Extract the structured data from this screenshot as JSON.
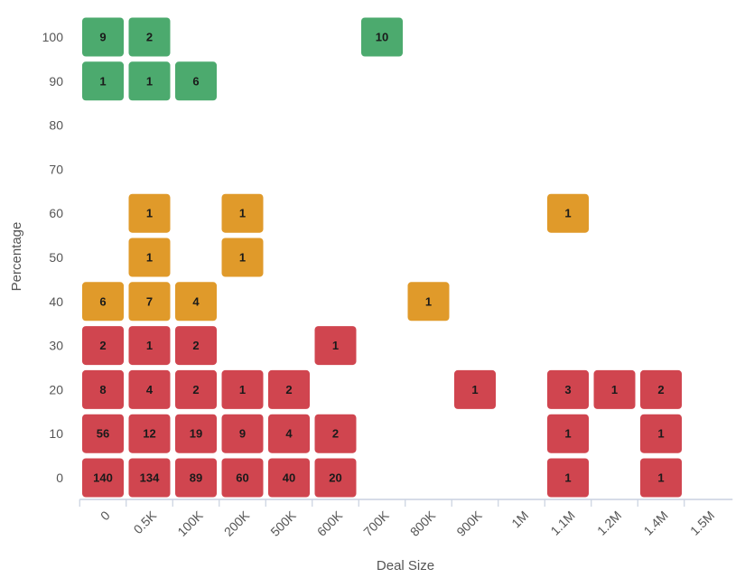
{
  "chart_data": {
    "type": "heatmap",
    "title": "",
    "xlabel": "Deal Size",
    "ylabel": "Percentage",
    "x_categories": [
      "0",
      "0.5K",
      "100K",
      "200K",
      "500K",
      "600K",
      "700K",
      "800K",
      "900K",
      "1M",
      "1.1M",
      "1.2M",
      "1.4M",
      "1.5M"
    ],
    "y_categories": [
      "0",
      "10",
      "20",
      "30",
      "40",
      "50",
      "60",
      "70",
      "80",
      "90",
      "100"
    ],
    "color_bands": [
      {
        "min_percentage": 0,
        "max_percentage": 30,
        "color": "#d0454f"
      },
      {
        "min_percentage": 40,
        "max_percentage": 60,
        "color": "#e09a2a"
      },
      {
        "min_percentage": 90,
        "max_percentage": 100,
        "color": "#4caa6e"
      }
    ],
    "cells": [
      {
        "x": "0",
        "y": "0",
        "value": 140
      },
      {
        "x": "0.5K",
        "y": "0",
        "value": 134
      },
      {
        "x": "100K",
        "y": "0",
        "value": 89
      },
      {
        "x": "200K",
        "y": "0",
        "value": 60
      },
      {
        "x": "500K",
        "y": "0",
        "value": 40
      },
      {
        "x": "600K",
        "y": "0",
        "value": 20
      },
      {
        "x": "1.1M",
        "y": "0",
        "value": 1
      },
      {
        "x": "1.4M",
        "y": "0",
        "value": 1
      },
      {
        "x": "0",
        "y": "10",
        "value": 56
      },
      {
        "x": "0.5K",
        "y": "10",
        "value": 12
      },
      {
        "x": "100K",
        "y": "10",
        "value": 19
      },
      {
        "x": "200K",
        "y": "10",
        "value": 9
      },
      {
        "x": "500K",
        "y": "10",
        "value": 4
      },
      {
        "x": "600K",
        "y": "10",
        "value": 2
      },
      {
        "x": "1.1M",
        "y": "10",
        "value": 1
      },
      {
        "x": "1.4M",
        "y": "10",
        "value": 1
      },
      {
        "x": "0",
        "y": "20",
        "value": 8
      },
      {
        "x": "0.5K",
        "y": "20",
        "value": 4
      },
      {
        "x": "100K",
        "y": "20",
        "value": 2
      },
      {
        "x": "200K",
        "y": "20",
        "value": 1
      },
      {
        "x": "500K",
        "y": "20",
        "value": 2
      },
      {
        "x": "900K",
        "y": "20",
        "value": 1
      },
      {
        "x": "1.1M",
        "y": "20",
        "value": 3
      },
      {
        "x": "1.2M",
        "y": "20",
        "value": 1
      },
      {
        "x": "1.4M",
        "y": "20",
        "value": 2
      },
      {
        "x": "0",
        "y": "30",
        "value": 2
      },
      {
        "x": "0.5K",
        "y": "30",
        "value": 1
      },
      {
        "x": "100K",
        "y": "30",
        "value": 2
      },
      {
        "x": "600K",
        "y": "30",
        "value": 1
      },
      {
        "x": "0",
        "y": "40",
        "value": 6
      },
      {
        "x": "0.5K",
        "y": "40",
        "value": 7
      },
      {
        "x": "100K",
        "y": "40",
        "value": 4
      },
      {
        "x": "800K",
        "y": "40",
        "value": 1
      },
      {
        "x": "0.5K",
        "y": "50",
        "value": 1
      },
      {
        "x": "200K",
        "y": "50",
        "value": 1
      },
      {
        "x": "0.5K",
        "y": "60",
        "value": 1
      },
      {
        "x": "200K",
        "y": "60",
        "value": 1
      },
      {
        "x": "1.1M",
        "y": "60",
        "value": 1
      },
      {
        "x": "0",
        "y": "90",
        "value": 1
      },
      {
        "x": "0.5K",
        "y": "90",
        "value": 1
      },
      {
        "x": "100K",
        "y": "90",
        "value": 6
      },
      {
        "x": "0",
        "y": "100",
        "value": 9
      },
      {
        "x": "0.5K",
        "y": "100",
        "value": 2
      },
      {
        "x": "700K",
        "y": "100",
        "value": 10
      }
    ],
    "grid": false,
    "legend": "none"
  }
}
